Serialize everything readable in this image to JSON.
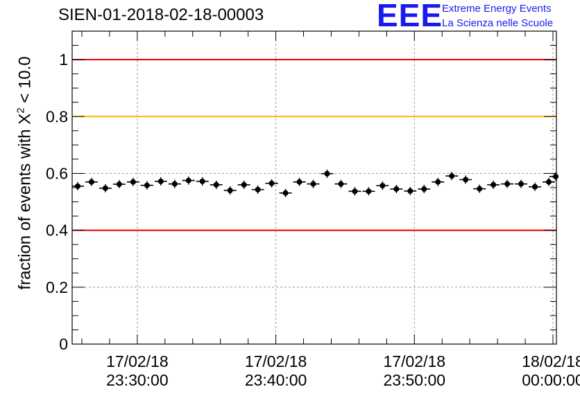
{
  "title": "SIEN-01-2018-02-18-00003",
  "logo": {
    "mark": "EEE",
    "line1": "Extreme Energy Events",
    "line2": "La Scienza nelle Scuole"
  },
  "ylabel": {
    "prefix": "fraction of events with X",
    "sup": "2",
    "suffix": " < 10.0"
  },
  "chart_data": {
    "type": "scatter",
    "title": "SIEN-01-2018-02-18-00003",
    "xlabel": "",
    "ylabel": "fraction of events with X^2 < 10.0",
    "x_time_range": [
      "17/02/18 23:25:18",
      "18/02/18 00:00:15"
    ],
    "x_ticks": [
      {
        "date": "17/02/18",
        "time": "23:30:00"
      },
      {
        "date": "17/02/18",
        "time": "23:40:00"
      },
      {
        "date": "17/02/18",
        "time": "23:50:00"
      },
      {
        "date": "18/02/18",
        "time": "00:00:00"
      }
    ],
    "ylim": [
      0,
      1.1
    ],
    "y_ticks": [
      "0",
      "0.2",
      "0.4",
      "0.6",
      "0.8",
      "1"
    ],
    "grid": true,
    "reference_lines": [
      {
        "y": 1.0,
        "color": "#e00000"
      },
      {
        "y": 0.8,
        "color": "#f5b800"
      },
      {
        "y": 0.4,
        "color": "#e00000"
      }
    ],
    "marker_color": "#000000",
    "points": [
      {
        "time": "23:25:42",
        "y": 0.555
      },
      {
        "time": "23:26:42",
        "y": 0.57
      },
      {
        "time": "23:27:42",
        "y": 0.548
      },
      {
        "time": "23:28:42",
        "y": 0.562
      },
      {
        "time": "23:29:42",
        "y": 0.57
      },
      {
        "time": "23:30:42",
        "y": 0.558
      },
      {
        "time": "23:31:42",
        "y": 0.572
      },
      {
        "time": "23:32:42",
        "y": 0.563
      },
      {
        "time": "23:33:42",
        "y": 0.575
      },
      {
        "time": "23:34:42",
        "y": 0.572
      },
      {
        "time": "23:35:42",
        "y": 0.56
      },
      {
        "time": "23:36:42",
        "y": 0.54
      },
      {
        "time": "23:37:42",
        "y": 0.56
      },
      {
        "time": "23:38:42",
        "y": 0.543
      },
      {
        "time": "23:39:42",
        "y": 0.565
      },
      {
        "time": "23:40:42",
        "y": 0.531
      },
      {
        "time": "23:41:42",
        "y": 0.57
      },
      {
        "time": "23:42:42",
        "y": 0.563
      },
      {
        "time": "23:43:42",
        "y": 0.599
      },
      {
        "time": "23:44:42",
        "y": 0.563
      },
      {
        "time": "23:45:42",
        "y": 0.537
      },
      {
        "time": "23:46:42",
        "y": 0.537
      },
      {
        "time": "23:47:42",
        "y": 0.557
      },
      {
        "time": "23:48:42",
        "y": 0.545
      },
      {
        "time": "23:49:42",
        "y": 0.538
      },
      {
        "time": "23:50:42",
        "y": 0.545
      },
      {
        "time": "23:51:42",
        "y": 0.57
      },
      {
        "time": "23:52:42",
        "y": 0.591
      },
      {
        "time": "23:53:42",
        "y": 0.578
      },
      {
        "time": "23:54:42",
        "y": 0.546
      },
      {
        "time": "23:55:42",
        "y": 0.56
      },
      {
        "time": "23:56:42",
        "y": 0.563
      },
      {
        "time": "23:57:42",
        "y": 0.563
      },
      {
        "time": "23:58:42",
        "y": 0.553
      },
      {
        "time": "23:59:42",
        "y": 0.57
      },
      {
        "time": "00:00:12",
        "y": 0.589
      }
    ]
  }
}
